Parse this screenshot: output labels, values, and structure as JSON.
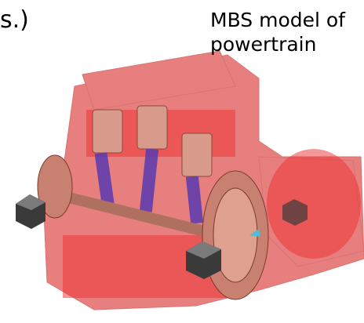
{
  "fragment": "s.)",
  "caption": {
    "lines": [
      "MBS model of",
      "powertrain"
    ]
  }
}
